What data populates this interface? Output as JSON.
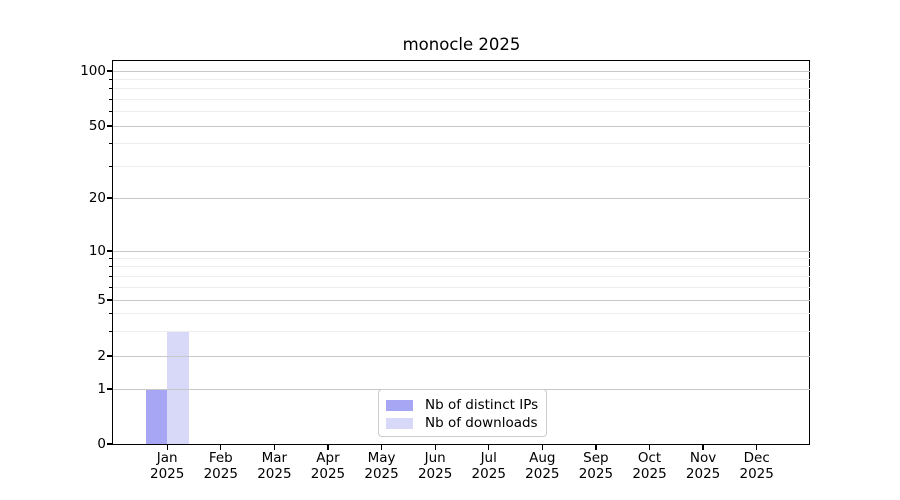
{
  "chart_data": {
    "type": "bar",
    "title": "monocle 2025",
    "categories": [
      "Jan",
      "Feb",
      "Mar",
      "Apr",
      "May",
      "Jun",
      "Jul",
      "Aug",
      "Sep",
      "Oct",
      "Nov",
      "Dec"
    ],
    "year_label": "2025",
    "series": [
      {
        "name": "Nb of distinct IPs",
        "color": "#a6a6f4",
        "values": [
          1,
          0,
          0,
          0,
          0,
          0,
          0,
          0,
          0,
          0,
          0,
          0
        ]
      },
      {
        "name": "Nb of downloads",
        "color": "#d8d8f8",
        "values": [
          3,
          0,
          0,
          0,
          0,
          0,
          0,
          0,
          0,
          0,
          0,
          0
        ]
      }
    ],
    "xlabel": "",
    "ylabel": "",
    "yscale": "log",
    "ylim": [
      0,
      114
    ],
    "y_major_ticks": [
      0,
      1,
      2,
      5,
      10,
      20,
      50,
      100
    ],
    "y_minor_ticks": [
      3,
      4,
      6,
      7,
      8,
      9,
      30,
      40,
      60,
      70,
      80,
      90
    ],
    "grid": "horizontal",
    "legend_position": "lower center"
  },
  "colors": {
    "major_grid": "#c8c8c8",
    "minor_grid": "#ededed",
    "axis": "#000000",
    "background": "#ffffff"
  }
}
